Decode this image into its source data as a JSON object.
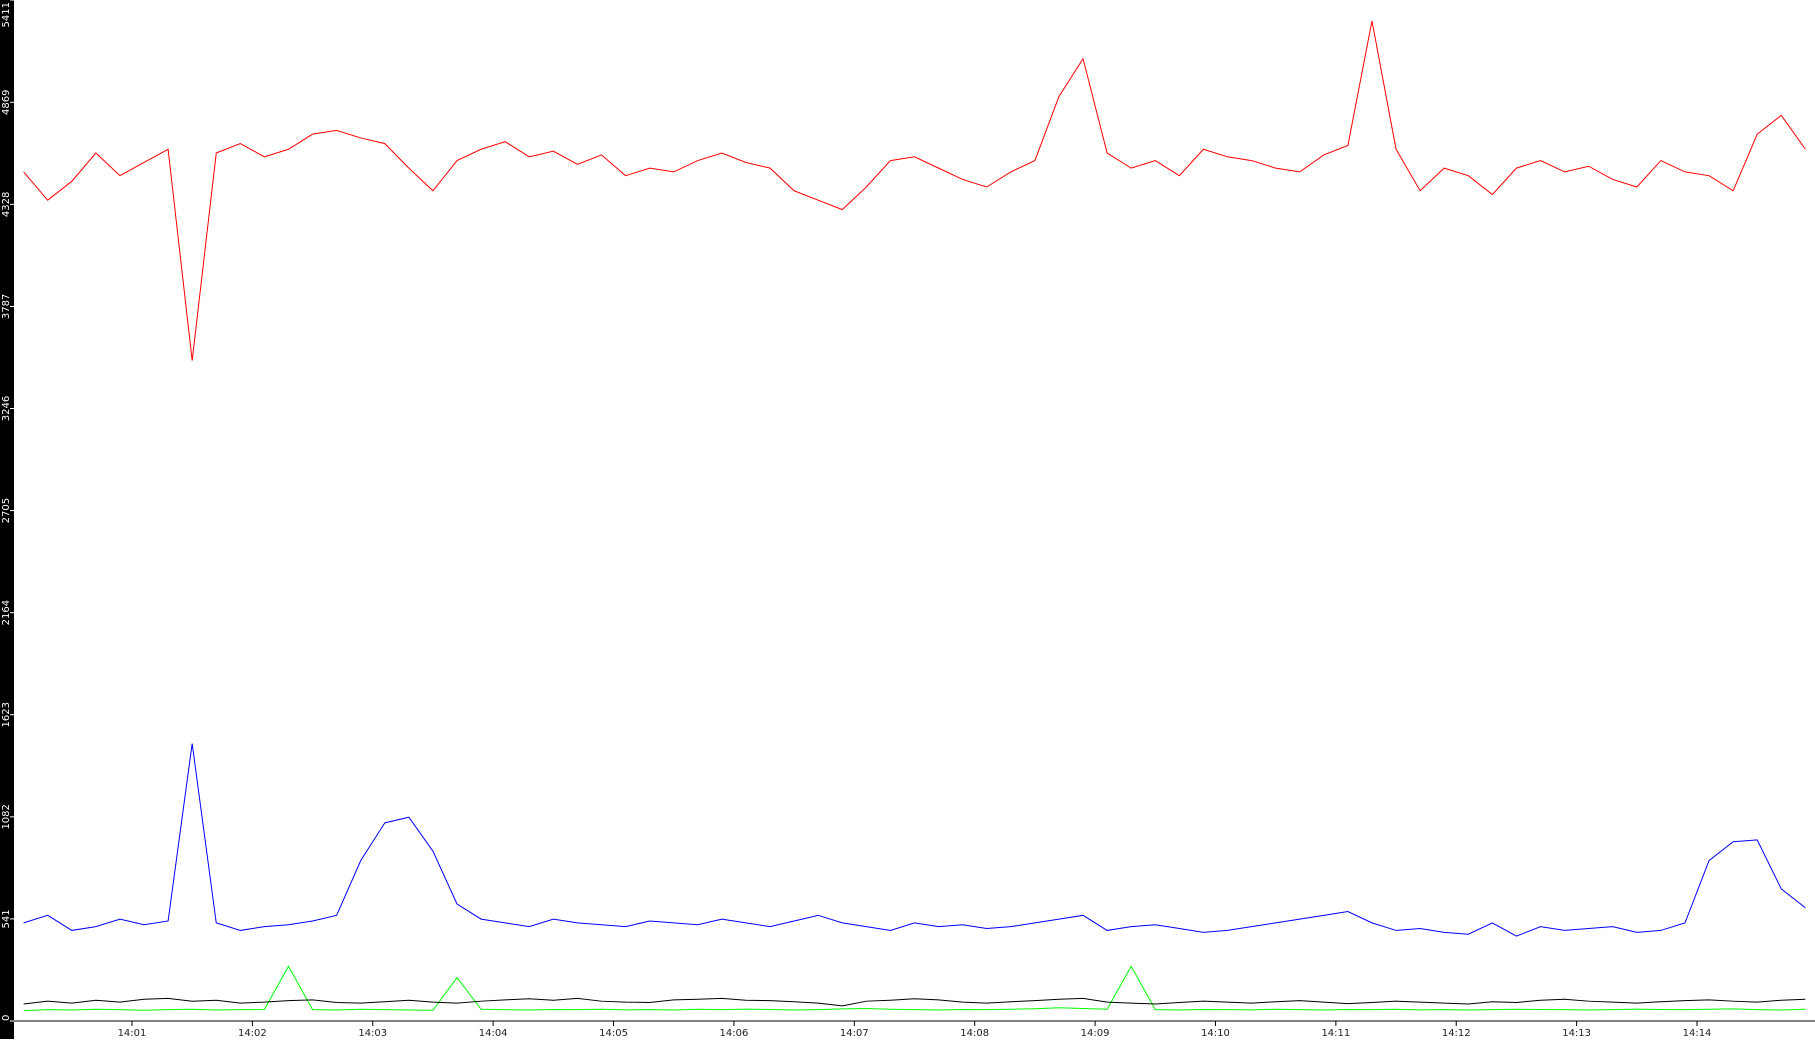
{
  "chart_data": {
    "type": "line",
    "x": [
      0.1,
      0.3,
      0.5,
      0.7,
      0.9,
      1.1,
      1.3,
      1.5,
      1.7,
      1.9,
      2.1,
      2.3,
      2.5,
      2.7,
      2.9,
      3.1,
      3.3,
      3.5,
      3.7,
      3.9,
      4.1,
      4.3,
      4.5,
      4.7,
      4.9,
      5.1,
      5.3,
      5.5,
      5.7,
      5.9,
      6.1,
      6.3,
      6.5,
      6.7,
      6.9,
      7.1,
      7.3,
      7.5,
      7.7,
      7.9,
      8.1,
      8.3,
      8.5,
      8.7,
      8.9,
      9.1,
      9.3,
      9.5,
      9.7,
      9.9,
      10.1,
      10.3,
      10.5,
      10.7,
      10.9,
      11.1,
      11.3,
      11.5,
      11.7,
      11.9,
      12.1,
      12.3,
      12.5,
      12.7,
      12.9,
      13.1,
      13.3,
      13.5,
      13.7,
      13.9,
      14.1,
      14.3,
      14.5,
      14.7,
      14.9
    ],
    "series": [
      {
        "color": "#ff0000",
        "values": [
          4500,
          4350,
          4450,
          4600,
          4480,
          4550,
          4620,
          3500,
          4600,
          4650,
          4580,
          4620,
          4700,
          4720,
          4680,
          4650,
          4520,
          4400,
          4560,
          4620,
          4660,
          4580,
          4610,
          4540,
          4590,
          4480,
          4520,
          4500,
          4560,
          4600,
          4550,
          4520,
          4400,
          4350,
          4300,
          4420,
          4560,
          4580,
          4520,
          4460,
          4420,
          4500,
          4560,
          4900,
          5100,
          4600,
          4520,
          4560,
          4480,
          4620,
          4580,
          4560,
          4520,
          4500,
          4590,
          4640,
          5300,
          4620,
          4400,
          4520,
          4480,
          4380,
          4520,
          4560,
          4500,
          4530,
          4460,
          4420,
          4560,
          4500,
          4480,
          4400,
          4700,
          4800,
          4620
        ]
      },
      {
        "color": "#0000ff",
        "values": [
          520,
          560,
          480,
          500,
          540,
          510,
          530,
          1470,
          520,
          480,
          500,
          510,
          530,
          560,
          850,
          1050,
          1080,
          900,
          620,
          540,
          520,
          500,
          540,
          520,
          510,
          500,
          530,
          520,
          510,
          540,
          520,
          500,
          530,
          560,
          520,
          500,
          480,
          520,
          500,
          510,
          490,
          500,
          520,
          540,
          560,
          480,
          500,
          510,
          490,
          470,
          480,
          500,
          520,
          540,
          560,
          580,
          520,
          480,
          490,
          470,
          460,
          520,
          450,
          500,
          480,
          490,
          500,
          470,
          480,
          520,
          850,
          950,
          960,
          700,
          600
        ]
      },
      {
        "color": "#000000",
        "values": [
          90,
          105,
          95,
          110,
          100,
          115,
          120,
          105,
          110,
          95,
          100,
          108,
          112,
          98,
          95,
          102,
          110,
          100,
          95,
          105,
          112,
          118,
          110,
          120,
          105,
          100,
          98,
          112,
          115,
          120,
          110,
          108,
          102,
          95,
          80,
          105,
          110,
          118,
          112,
          100,
          95,
          102,
          108,
          115,
          120,
          100,
          95,
          90,
          98,
          105,
          100,
          95,
          102,
          108,
          100,
          92,
          98,
          105,
          100,
          95,
          90,
          102,
          98,
          110,
          115,
          105,
          100,
          95,
          102,
          108,
          112,
          105,
          100,
          110,
          115
        ]
      },
      {
        "color": "#00ff00",
        "values": [
          55,
          60,
          58,
          62,
          60,
          57,
          60,
          62,
          58,
          60,
          61,
          290,
          60,
          58,
          62,
          60,
          58,
          57,
          230,
          62,
          60,
          58,
          61,
          60,
          62,
          59,
          60,
          58,
          62,
          60,
          63,
          61,
          58,
          60,
          64,
          66,
          62,
          60,
          58,
          61,
          60,
          62,
          65,
          70,
          66,
          62,
          290,
          60,
          58,
          61,
          60,
          59,
          62,
          60,
          58,
          61,
          60,
          62,
          59,
          60,
          58,
          60,
          62,
          61,
          60,
          58,
          60,
          63,
          61,
          60,
          62,
          64,
          60,
          58,
          62
        ]
      }
    ],
    "xlim": [
      0.02,
      14.98
    ],
    "xticks": [
      {
        "value": 1,
        "label": "14:01"
      },
      {
        "value": 2,
        "label": "14:02"
      },
      {
        "value": 3,
        "label": "14:03"
      },
      {
        "value": 4,
        "label": "14:04"
      },
      {
        "value": 5,
        "label": "14:05"
      },
      {
        "value": 6,
        "label": "14:06"
      },
      {
        "value": 7,
        "label": "14:07"
      },
      {
        "value": 8,
        "label": "14:08"
      },
      {
        "value": 9,
        "label": "14:09"
      },
      {
        "value": 10,
        "label": "14:10"
      },
      {
        "value": 11,
        "label": "14:11"
      },
      {
        "value": 12,
        "label": "14:12"
      },
      {
        "value": 13,
        "label": "14:13"
      },
      {
        "value": 14,
        "label": "14:14"
      }
    ],
    "ylim": [
      0,
      5411
    ],
    "yticks": [
      0,
      541,
      1082,
      1623,
      2164,
      2705,
      3246,
      3787,
      4328,
      4869,
      5411
    ]
  }
}
